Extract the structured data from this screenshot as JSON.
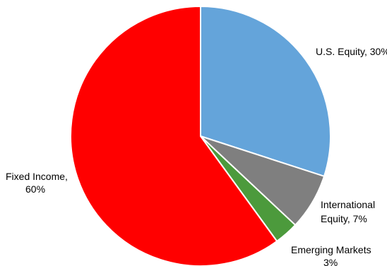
{
  "chart_data": {
    "type": "pie",
    "slices": [
      {
        "name": "U.S. Equity",
        "value": 30,
        "label_lines": [
          "U.S. Equity, 30%"
        ],
        "color": "#64A4DA"
      },
      {
        "name": "International Equity",
        "value": 7,
        "label_lines": [
          "International",
          "Equity, 7%"
        ],
        "color": "#7F7F7F"
      },
      {
        "name": "Emerging Markets",
        "value": 3,
        "label_lines": [
          "Emerging Markets",
          "3%"
        ],
        "color": "#4C9A3C"
      },
      {
        "name": "Fixed Income",
        "value": 60,
        "label_lines": [
          "Fixed Income,",
          "60%"
        ],
        "color": "#FF0000"
      }
    ],
    "legend": "none"
  }
}
